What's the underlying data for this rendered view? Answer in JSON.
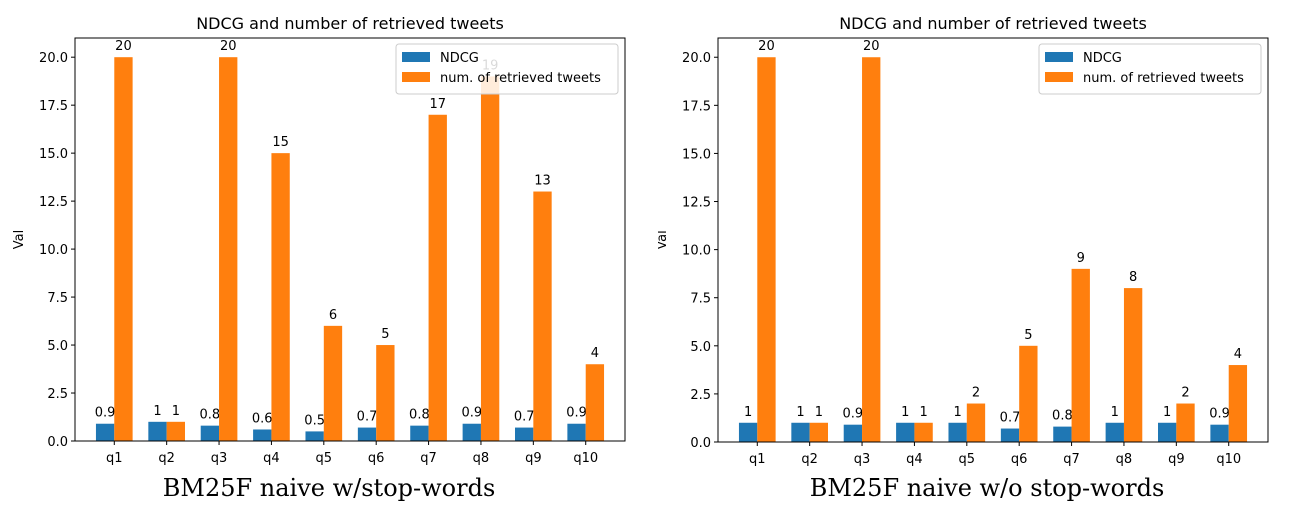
{
  "colors": {
    "ndcg": "#1f77b4",
    "retrieved": "#ff7f0e"
  },
  "chart_data": [
    {
      "type": "bar",
      "title": "NDCG and number of retrieved tweets",
      "caption": "BM25F naive w/stop-words",
      "xlabel": "",
      "ylabel": "Val",
      "ylim": [
        0,
        21
      ],
      "yticks": [
        "0.0",
        "2.5",
        "5.0",
        "7.5",
        "10.0",
        "12.5",
        "15.0",
        "17.5",
        "20.0"
      ],
      "legend_position": "top-right",
      "categories": [
        "q1",
        "q2",
        "q3",
        "q4",
        "q5",
        "q6",
        "q7",
        "q8",
        "q9",
        "q10"
      ],
      "series": [
        {
          "name": "NDCG",
          "values": [
            0.9,
            1,
            0.8,
            0.6,
            0.5,
            0.7,
            0.8,
            0.9,
            0.7,
            0.9
          ]
        },
        {
          "name": "num. of retrieved tweets",
          "values": [
            20,
            1,
            20,
            15,
            6,
            5,
            17,
            19,
            13,
            4
          ]
        }
      ]
    },
    {
      "type": "bar",
      "title": "NDCG and number of retrieved tweets",
      "caption": "BM25F naive w/o stop-words",
      "xlabel": "",
      "ylabel": "Val",
      "ylim": [
        0,
        21
      ],
      "yticks": [
        "0.0",
        "2.5",
        "5.0",
        "7.5",
        "10.0",
        "12.5",
        "15.0",
        "17.5",
        "20.0"
      ],
      "legend_position": "top-right",
      "categories": [
        "q1",
        "q2",
        "q3",
        "q4",
        "q5",
        "q6",
        "q7",
        "q8",
        "q9",
        "q10"
      ],
      "series": [
        {
          "name": "NDCG",
          "values": [
            1,
            1,
            0.9,
            1,
            1,
            0.7,
            0.8,
            1,
            1,
            0.9
          ]
        },
        {
          "name": "num. of retrieved tweets",
          "values": [
            20,
            1,
            20,
            1,
            2,
            5,
            9,
            8,
            2,
            4
          ]
        }
      ]
    }
  ]
}
